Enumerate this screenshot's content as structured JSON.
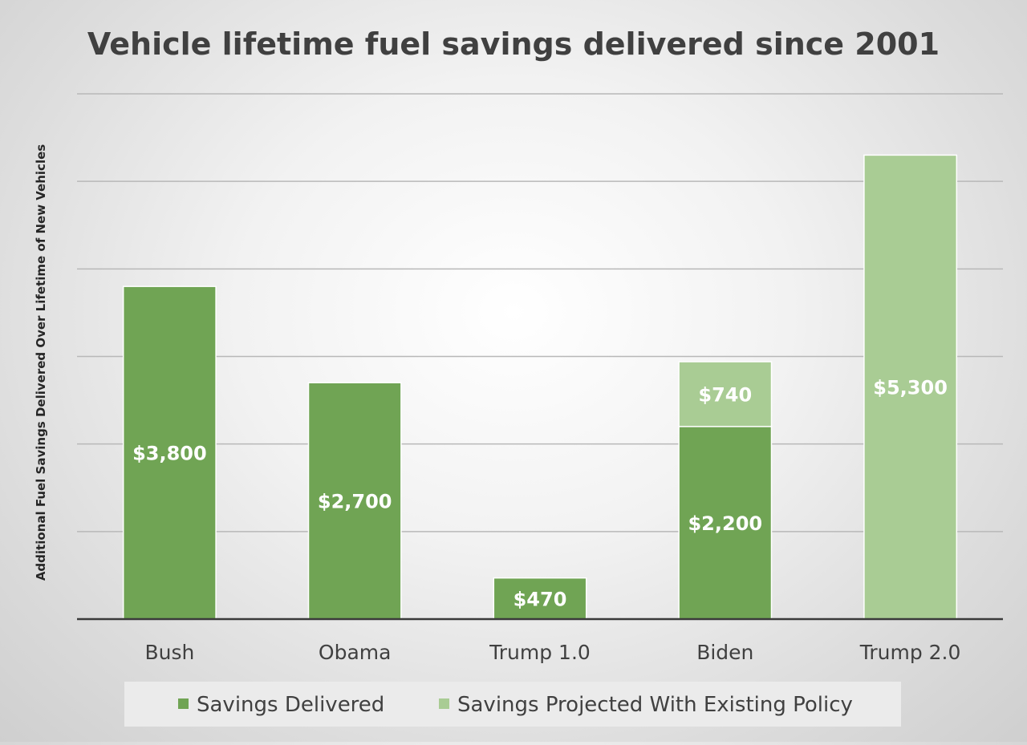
{
  "chart_data": {
    "type": "bar",
    "stacked": true,
    "title": "Vehicle lifetime fuel savings delivered since 2001",
    "xlabel": "",
    "ylabel": "Additional Fuel Savings Delivered Over Lifetime of New Vehicles",
    "categories": [
      "Bush",
      "Obama",
      "Trump 1.0",
      "Biden",
      "Trump 2.0"
    ],
    "series": [
      {
        "name": "Savings Delivered",
        "color": "#70a454",
        "values": [
          3800,
          2700,
          470,
          2200,
          0
        ],
        "labels": [
          "$3,800",
          "$2,700",
          "$470",
          "$2,200",
          ""
        ]
      },
      {
        "name": "Savings Projected With Existing Policy",
        "color": "#a9cc94",
        "values": [
          0,
          0,
          0,
          740,
          5300
        ],
        "labels": [
          "",
          "",
          "",
          "$740",
          "$5,300"
        ]
      }
    ],
    "ylim": [
      0,
      6000
    ],
    "ytick_step": 1000,
    "grid": true,
    "legend": "bottom"
  }
}
